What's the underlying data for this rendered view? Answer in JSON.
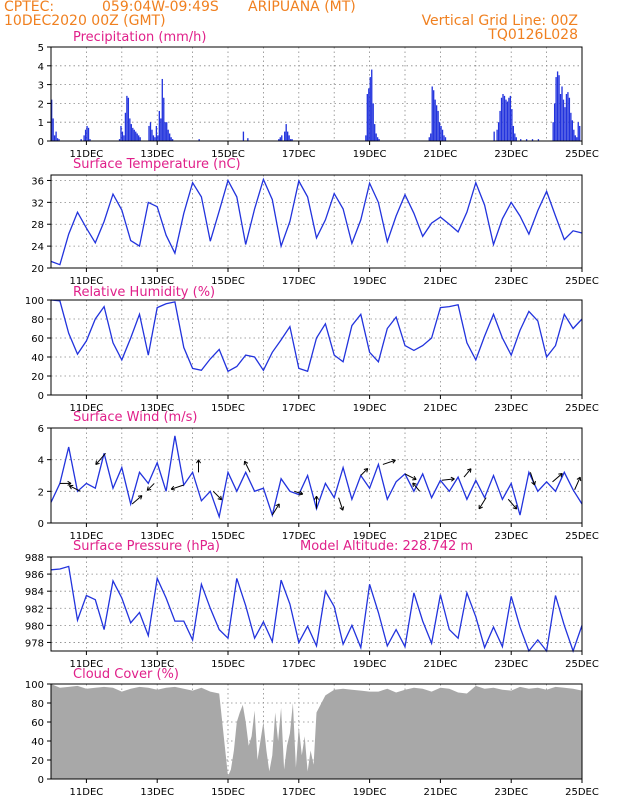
{
  "header": {
    "source": "CPTEC:",
    "coords": "059:04W-09:49S",
    "location": "ARIPUANA (MT)",
    "init": "10DEC2020 00Z (GMT)",
    "grid_note": "Vertical Grid Line: 00Z",
    "code": "TQ0126L028",
    "colors": {
      "header": "#f08020",
      "title": "#e0208a",
      "line": "#2233dd",
      "bar": "#2233dd",
      "cloud": "#a8a8a8",
      "arrow": "#000000"
    }
  },
  "x_ticks": [
    "11DEC",
    "13DEC",
    "15DEC",
    "17DEC",
    "19DEC",
    "21DEC",
    "23DEC",
    "25DEC"
  ],
  "chart_data": [
    {
      "id": "precip",
      "type": "bar",
      "title": "Precipitation (mm/h)",
      "ylim": [
        0,
        5
      ],
      "yticks": [
        "0",
        "1",
        "2",
        "3",
        "4",
        "5"
      ],
      "x_unit": "hours since 10DEC2020 00Z",
      "events": [
        [
          0,
          2.2
        ],
        [
          1,
          1.2
        ],
        [
          2,
          0.3
        ],
        [
          3,
          0.5
        ],
        [
          4,
          0.15
        ],
        [
          5,
          0.1
        ],
        [
          20,
          0.1
        ],
        [
          22,
          0.3
        ],
        [
          23,
          0.6
        ],
        [
          24,
          0.8
        ],
        [
          25,
          0.7
        ],
        [
          26,
          0.1
        ],
        [
          46,
          0.1
        ],
        [
          47,
          0.8
        ],
        [
          48,
          0.5
        ],
        [
          49,
          0.3
        ],
        [
          50,
          1.5
        ],
        [
          51,
          2.4
        ],
        [
          52,
          2.3
        ],
        [
          53,
          1.2
        ],
        [
          54,
          0.9
        ],
        [
          55,
          0.7
        ],
        [
          56,
          0.6
        ],
        [
          57,
          0.5
        ],
        [
          58,
          0.4
        ],
        [
          59,
          0.3
        ],
        [
          60,
          0.2
        ],
        [
          66,
          0.8
        ],
        [
          67,
          1.0
        ],
        [
          68,
          0.6
        ],
        [
          69,
          0.3
        ],
        [
          70,
          0.2
        ],
        [
          71,
          0.8
        ],
        [
          72,
          0.3
        ],
        [
          73,
          1.6
        ],
        [
          74,
          1.2
        ],
        [
          75,
          3.3
        ],
        [
          76,
          2.3
        ],
        [
          77,
          1.0
        ],
        [
          78,
          1.0
        ],
        [
          79,
          0.6
        ],
        [
          80,
          0.4
        ],
        [
          81,
          0.2
        ],
        [
          82,
          0.1
        ],
        [
          100,
          0.1
        ],
        [
          130,
          0.5
        ],
        [
          133,
          0.15
        ],
        [
          154,
          0.1
        ],
        [
          155,
          0.2
        ],
        [
          156,
          0.3
        ],
        [
          158,
          0.5
        ],
        [
          159,
          0.9
        ],
        [
          160,
          0.5
        ],
        [
          161,
          0.3
        ],
        [
          162,
          0.1
        ],
        [
          163,
          0.1
        ],
        [
          213,
          0.3
        ],
        [
          214,
          2.5
        ],
        [
          215,
          2.8
        ],
        [
          216,
          3.4
        ],
        [
          217,
          3.8
        ],
        [
          218,
          2.0
        ],
        [
          219,
          0.9
        ],
        [
          220,
          0.4
        ],
        [
          221,
          0.2
        ],
        [
          222,
          0.1
        ],
        [
          256,
          0.2
        ],
        [
          257,
          0.4
        ],
        [
          258,
          2.9
        ],
        [
          259,
          2.7
        ],
        [
          260,
          2.2
        ],
        [
          261,
          1.9
        ],
        [
          262,
          1.6
        ],
        [
          263,
          1.0
        ],
        [
          264,
          0.8
        ],
        [
          265,
          0.6
        ],
        [
          266,
          0.3
        ],
        [
          267,
          0.2
        ],
        [
          300,
          0.5
        ],
        [
          302,
          0.6
        ],
        [
          303,
          1.0
        ],
        [
          304,
          1.6
        ],
        [
          305,
          2.3
        ],
        [
          306,
          2.5
        ],
        [
          307,
          2.4
        ],
        [
          308,
          2.2
        ],
        [
          309,
          2.1
        ],
        [
          310,
          2.3
        ],
        [
          311,
          2.4
        ],
        [
          312,
          1.7
        ],
        [
          313,
          0.8
        ],
        [
          314,
          0.4
        ],
        [
          315,
          0.2
        ],
        [
          318,
          0.1
        ],
        [
          322,
          0.1
        ],
        [
          326,
          0.1
        ],
        [
          330,
          0.1
        ],
        [
          340,
          1.0
        ],
        [
          341,
          2.0
        ],
        [
          342,
          3.4
        ],
        [
          343,
          3.7
        ],
        [
          344,
          3.5
        ],
        [
          345,
          2.5
        ],
        [
          346,
          2.9
        ],
        [
          347,
          2.2
        ],
        [
          348,
          1.8
        ],
        [
          349,
          2.5
        ],
        [
          350,
          2.6
        ],
        [
          351,
          2.3
        ],
        [
          352,
          1.5
        ],
        [
          353,
          1.1
        ],
        [
          354,
          0.6
        ],
        [
          355,
          0.3
        ],
        [
          356,
          0.2
        ],
        [
          357,
          1.0
        ],
        [
          358,
          0.8
        ]
      ]
    },
    {
      "id": "temp",
      "type": "line",
      "title": "Surface Temperature (nC)",
      "ylim": [
        20,
        37
      ],
      "yticks": [
        "20",
        "24",
        "28",
        "32",
        "36"
      ],
      "x_unit": "hours since 10DEC2020 00Z",
      "x": [
        0,
        6,
        12,
        18,
        24,
        30,
        36,
        42,
        48,
        54,
        60,
        66,
        72,
        78,
        84,
        90,
        96,
        102,
        108,
        114,
        120,
        126,
        132,
        138,
        144,
        150,
        156,
        162,
        168,
        174,
        180,
        186,
        192,
        198,
        204,
        210,
        216,
        222,
        228,
        234,
        240,
        246,
        252,
        258,
        264,
        270,
        276,
        282,
        288,
        294,
        300,
        306,
        312,
        318,
        324,
        330,
        336,
        342,
        348,
        354,
        360
      ],
      "y": [
        21.2,
        20.6,
        26.2,
        30.2,
        27.3,
        24.6,
        28.5,
        33.5,
        30.6,
        25.0,
        24.0,
        32.0,
        31.2,
        26.0,
        22.7,
        30.0,
        35.6,
        33.0,
        24.9,
        30.4,
        36.0,
        33.0,
        24.3,
        30.8,
        36.2,
        32.5,
        24.0,
        28.5,
        35.9,
        33.0,
        25.5,
        28.8,
        33.6,
        30.8,
        24.5,
        28.8,
        35.5,
        32.0,
        24.8,
        29.5,
        33.4,
        30.0,
        25.8,
        28.2,
        29.3,
        28.0,
        26.6,
        30.2,
        35.6,
        31.5,
        24.3,
        29.0,
        32.0,
        29.5,
        26.2,
        30.5,
        34.0,
        29.5,
        25.2,
        26.8,
        26.4
      ]
    },
    {
      "id": "rh",
      "type": "line",
      "title": "Relative Humidity (%)",
      "ylim": [
        0,
        100
      ],
      "yticks": [
        "0",
        "20",
        "40",
        "60",
        "80",
        "100"
      ],
      "x_unit": "hours since 10DEC2020 00Z",
      "x": [
        0,
        6,
        12,
        18,
        24,
        30,
        36,
        42,
        48,
        54,
        60,
        66,
        72,
        78,
        84,
        90,
        96,
        102,
        108,
        114,
        120,
        126,
        132,
        138,
        144,
        150,
        156,
        162,
        168,
        174,
        180,
        186,
        192,
        198,
        204,
        210,
        216,
        222,
        228,
        234,
        240,
        246,
        252,
        258,
        264,
        270,
        276,
        282,
        288,
        294,
        300,
        306,
        312,
        318,
        324,
        330,
        336,
        342,
        348,
        354,
        360
      ],
      "y": [
        100,
        99,
        65,
        43,
        57,
        80,
        93,
        55,
        37,
        60,
        85,
        42,
        92,
        96,
        98,
        50,
        28,
        26,
        38,
        48,
        25,
        30,
        42,
        40,
        26,
        45,
        58,
        72,
        28,
        25,
        60,
        75,
        42,
        35,
        73,
        85,
        45,
        35,
        70,
        82,
        52,
        47,
        52,
        60,
        92,
        93,
        95,
        55,
        37,
        62,
        85,
        60,
        42,
        68,
        88,
        78,
        40,
        52,
        85,
        70,
        80
      ]
    },
    {
      "id": "wind",
      "type": "line",
      "title": "Surface Wind (m/s)",
      "ylim": [
        0,
        6
      ],
      "yticks": [
        "0",
        "2",
        "4",
        "6"
      ],
      "x_unit": "hours since 10DEC2020 00Z",
      "x": [
        0,
        6,
        12,
        18,
        24,
        30,
        36,
        42,
        48,
        54,
        60,
        66,
        72,
        78,
        84,
        90,
        96,
        102,
        108,
        114,
        120,
        126,
        132,
        138,
        144,
        150,
        156,
        162,
        168,
        174,
        180,
        186,
        192,
        198,
        204,
        210,
        216,
        222,
        228,
        234,
        240,
        246,
        252,
        258,
        264,
        270,
        276,
        282,
        288,
        294,
        300,
        306,
        312,
        318,
        324,
        330,
        336,
        342,
        348,
        354,
        360
      ],
      "y": [
        1.3,
        2.5,
        4.8,
        2.0,
        2.5,
        2.2,
        4.4,
        2.2,
        3.5,
        1.2,
        3.2,
        2.5,
        3.8,
        2.0,
        5.5,
        2.4,
        3.2,
        1.4,
        2.0,
        0.4,
        3.2,
        2.0,
        3.2,
        2.0,
        2.2,
        0.5,
        2.8,
        2.0,
        1.8,
        3.0,
        0.9,
        2.5,
        1.6,
        3.5,
        1.5,
        3.0,
        2.2,
        3.7,
        1.5,
        2.6,
        3.1,
        2.0,
        3.1,
        1.6,
        2.7,
        2.0,
        2.9,
        1.5,
        2.7,
        1.6,
        3.0,
        1.5,
        2.5,
        0.5,
        3.2,
        2.0,
        2.6,
        2.0,
        3.2,
        2.1,
        1.2
      ],
      "vectors": [
        [
          6,
          0.8,
          0.0
        ],
        [
          20,
          -0.8,
          0.4
        ],
        [
          37,
          -0.7,
          -0.8
        ],
        [
          55,
          0.7,
          0.6
        ],
        [
          70,
          -0.5,
          -0.5
        ],
        [
          90,
          -0.9,
          -0.3
        ],
        [
          100,
          0.0,
          0.9
        ],
        [
          110,
          0.6,
          -0.6
        ],
        [
          135,
          -0.4,
          0.8
        ],
        [
          150,
          0.5,
          0.8
        ],
        [
          165,
          0.6,
          -0.2
        ],
        [
          180,
          0.0,
          0.9
        ],
        [
          195,
          0.3,
          -0.9
        ],
        [
          210,
          0.5,
          0.5
        ],
        [
          225,
          0.9,
          0.3
        ],
        [
          240,
          0.8,
          -0.4
        ],
        [
          250,
          -0.5,
          0.6
        ],
        [
          265,
          0.9,
          0.1
        ],
        [
          280,
          0.5,
          0.6
        ],
        [
          295,
          -0.5,
          -0.8
        ],
        [
          310,
          0.6,
          -0.7
        ],
        [
          325,
          0.3,
          -0.9
        ],
        [
          340,
          0.7,
          0.6
        ],
        [
          355,
          0.4,
          0.9
        ]
      ]
    },
    {
      "id": "pres",
      "type": "line",
      "title": "Surface Pressure (hPa)",
      "subtitle": "Model Altitude: 228.742 m",
      "ylim": [
        977,
        988
      ],
      "yticks": [
        "978",
        "980",
        "982",
        "984",
        "986",
        "988"
      ],
      "x_unit": "hours since 10DEC2020 00Z",
      "x": [
        0,
        6,
        12,
        18,
        24,
        30,
        36,
        42,
        48,
        54,
        60,
        66,
        72,
        78,
        84,
        90,
        96,
        102,
        108,
        114,
        120,
        126,
        132,
        138,
        144,
        150,
        156,
        162,
        168,
        174,
        180,
        186,
        192,
        198,
        204,
        210,
        216,
        222,
        228,
        234,
        240,
        246,
        252,
        258,
        264,
        270,
        276,
        282,
        288,
        294,
        300,
        306,
        312,
        318,
        324,
        330,
        336,
        342,
        348,
        354,
        360
      ],
      "y": [
        986.5,
        986.6,
        986.9,
        980.6,
        983.5,
        983.0,
        979.5,
        985.2,
        983.2,
        980.3,
        981.5,
        978.8,
        985.5,
        983.2,
        980.5,
        980.5,
        978.3,
        984.8,
        982.0,
        979.5,
        978.5,
        985.5,
        982.3,
        978.5,
        980.4,
        978.1,
        985.3,
        982.5,
        978.0,
        979.9,
        977.6,
        984.0,
        982.2,
        977.8,
        980.0,
        977.4,
        984.8,
        981.5,
        977.6,
        979.5,
        977.5,
        983.8,
        980.5,
        977.9,
        983.6,
        979.5,
        978.5,
        983.8,
        981.0,
        977.4,
        979.8,
        977.5,
        983.4,
        979.8,
        976.5,
        978.3,
        977.0,
        983.5,
        980.0,
        976.6,
        980.0
      ]
    },
    {
      "id": "cloud",
      "type": "area",
      "title": "Cloud Cover (%)",
      "ylim": [
        0,
        100
      ],
      "yticks": [
        "0",
        "20",
        "40",
        "60",
        "80",
        "100"
      ],
      "x_unit": "hours since 10DEC2020 00Z",
      "x": [
        0,
        6,
        12,
        18,
        24,
        30,
        36,
        42,
        48,
        54,
        60,
        66,
        72,
        78,
        84,
        90,
        96,
        102,
        108,
        114,
        120,
        122,
        124,
        126,
        128,
        130,
        132,
        134,
        136,
        138,
        140,
        142,
        144,
        146,
        148,
        150,
        152,
        154,
        156,
        158,
        160,
        162,
        164,
        166,
        168,
        170,
        172,
        174,
        176,
        178,
        180,
        186,
        192,
        198,
        204,
        210,
        216,
        222,
        228,
        234,
        240,
        246,
        252,
        258,
        264,
        270,
        276,
        282,
        288,
        294,
        300,
        306,
        312,
        318,
        324,
        330,
        336,
        342,
        348,
        354,
        360
      ],
      "y": [
        100,
        96,
        97,
        98,
        95,
        96,
        97,
        96,
        92,
        95,
        97,
        96,
        94,
        96,
        97,
        95,
        93,
        96,
        92,
        90,
        3,
        10,
        30,
        60,
        70,
        78,
        60,
        35,
        45,
        72,
        20,
        40,
        60,
        30,
        8,
        25,
        70,
        40,
        75,
        10,
        35,
        48,
        80,
        12,
        55,
        25,
        45,
        8,
        30,
        15,
        70,
        88,
        94,
        95,
        94,
        93,
        92,
        92,
        95,
        91,
        94,
        96,
        95,
        92,
        96,
        95,
        91,
        90,
        98,
        95,
        96,
        94,
        93,
        97,
        95,
        96,
        94,
        97,
        96,
        95,
        93
      ]
    }
  ]
}
